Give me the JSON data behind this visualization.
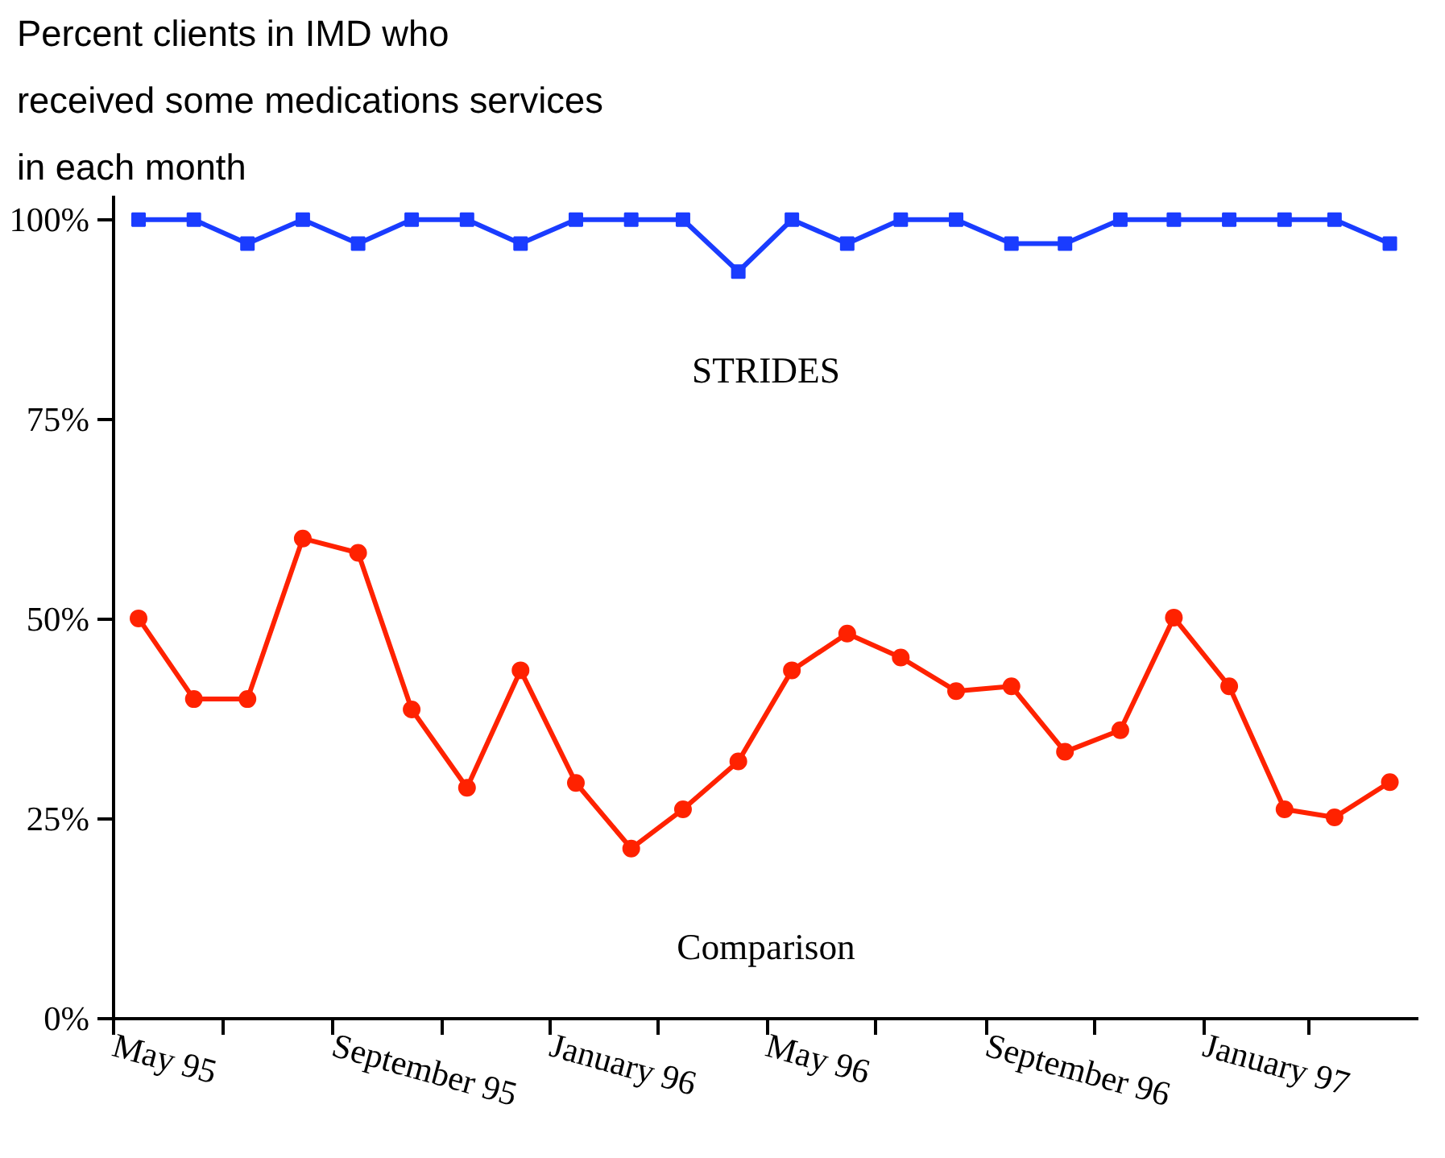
{
  "chart_data": {
    "type": "line",
    "title": "Percent clients in IMD who\nreceived some medications services\nin each month",
    "x": [
      "1995-05-15",
      "1995-06-15",
      "1995-07-15",
      "1995-08-15",
      "1995-09-15",
      "1995-10-15",
      "1995-11-15",
      "1995-12-15",
      "1996-01-15",
      "1996-02-15",
      "1996-03-15",
      "1996-04-15",
      "1996-05-15",
      "1996-06-15",
      "1996-07-15",
      "1996-08-15",
      "1996-09-15",
      "1996-10-15",
      "1996-11-15",
      "1996-12-15",
      "1997-01-15",
      "1997-02-15",
      "1997-03-15",
      "1997-04-15"
    ],
    "series": [
      {
        "name": "STRIDES",
        "color": "#1a3cff",
        "marker": "square",
        "values": [
          100,
          100,
          97,
          100,
          97,
          100,
          100,
          97,
          100,
          100,
          100,
          93.5,
          100,
          97,
          100,
          100,
          97,
          97,
          100,
          100,
          100,
          100,
          100,
          97
        ]
      },
      {
        "name": "Comparison",
        "color": "#ff2200",
        "marker": "circle",
        "values": [
          50.1,
          40,
          40,
          60.1,
          58.3,
          38.7,
          28.9,
          43.6,
          29.5,
          21.3,
          26.2,
          32.2,
          43.6,
          48.2,
          45.2,
          41,
          41.6,
          33.4,
          36.1,
          50.2,
          41.6,
          26.2,
          25.2,
          29.6
        ]
      }
    ],
    "xlim": [
      "1995-05-01",
      "1997-05-01"
    ],
    "xticks": [
      {
        "value": "1995-05",
        "label": "May 95"
      },
      {
        "value": "1995-07",
        "label": null
      },
      {
        "value": "1995-09",
        "label": "September 95"
      },
      {
        "value": "1995-11",
        "label": null
      },
      {
        "value": "1996-01",
        "label": "January 96"
      },
      {
        "value": "1996-03",
        "label": null
      },
      {
        "value": "1996-05",
        "label": "May 96"
      },
      {
        "value": "1996-07",
        "label": null
      },
      {
        "value": "1996-09",
        "label": "September 96"
      },
      {
        "value": "1996-11",
        "label": null
      },
      {
        "value": "1997-01",
        "label": "January 97"
      },
      {
        "value": "1997-03",
        "label": null
      }
    ],
    "ylim": [
      0,
      103
    ],
    "yticks": [
      {
        "value": 0,
        "label": "0%"
      },
      {
        "value": 25,
        "label": "25%"
      },
      {
        "value": 50,
        "label": "50%"
      },
      {
        "value": 75,
        "label": "75%"
      },
      {
        "value": 100,
        "label": "100%"
      }
    ],
    "grid": false,
    "line_style": "solid"
  }
}
